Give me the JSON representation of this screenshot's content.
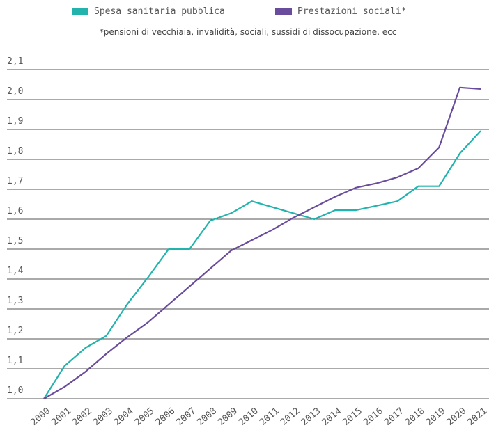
{
  "chart_data": {
    "type": "line",
    "note": "*pensioni di vecchiaia, invalidità, sociali, sussidi di dissocupazione, ecc",
    "categories": [
      "2000",
      "2001",
      "2002",
      "2003",
      "2004",
      "2005",
      "2006",
      "2007",
      "2008",
      "2009",
      "2010",
      "2011",
      "2012",
      "2013",
      "2014",
      "2015",
      "2016",
      "2017",
      "2018",
      "2019",
      "2020",
      "2021"
    ],
    "series": [
      {
        "name": "Spesa sanitaria pubblica",
        "color": "#22b3ad",
        "values": [
          1.0,
          1.11,
          1.17,
          1.21,
          1.315,
          1.405,
          1.5,
          1.5,
          1.595,
          1.62,
          1.66,
          1.64,
          1.62,
          1.6,
          1.63,
          1.63,
          1.645,
          1.66,
          1.71,
          1.71,
          1.82,
          1.895
        ]
      },
      {
        "name": "Prestazioni sociali*",
        "color": "#6a4c9c",
        "values": [
          1.0,
          1.04,
          1.09,
          1.15,
          1.205,
          1.255,
          1.315,
          1.375,
          1.435,
          1.495,
          1.53,
          1.565,
          1.605,
          1.64,
          1.675,
          1.705,
          1.72,
          1.74,
          1.77,
          1.84,
          2.04,
          2.035
        ]
      }
    ],
    "ylim": [
      1.0,
      2.1
    ],
    "yticks": [
      {
        "value": 1.0,
        "label": "1,0"
      },
      {
        "value": 1.1,
        "label": "1,1"
      },
      {
        "value": 1.2,
        "label": "1,2"
      },
      {
        "value": 1.3,
        "label": "1,3"
      },
      {
        "value": 1.4,
        "label": "1,4"
      },
      {
        "value": 1.5,
        "label": "1,5"
      },
      {
        "value": 1.6,
        "label": "1,6"
      },
      {
        "value": 1.7,
        "label": "1,7"
      },
      {
        "value": 1.8,
        "label": "1,8"
      },
      {
        "value": 1.9,
        "label": "1,9"
      },
      {
        "value": 2.0,
        "label": "2,0"
      },
      {
        "value": 2.1,
        "label": "2,1"
      }
    ],
    "grid": true
  }
}
